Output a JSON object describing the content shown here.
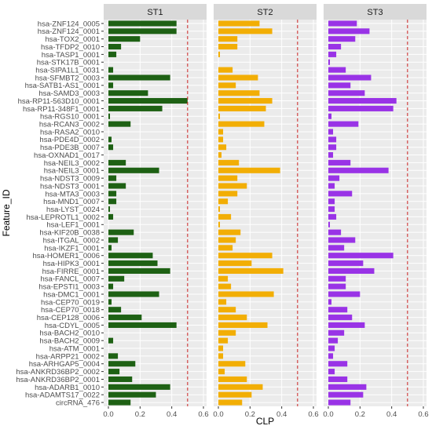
{
  "chart_data": {
    "type": "bar",
    "orientation": "horizontal",
    "facet_by": "subtype",
    "xlabel": "CLP",
    "ylabel": "Feature_ID",
    "xlim": [
      0,
      0.6
    ],
    "x_ticks": [
      0.0,
      0.2,
      0.4,
      0.6
    ],
    "x_tick_labels": [
      "0.0",
      "0.2",
      "0.4",
      "0.6"
    ],
    "reference_line": 0.5,
    "grid": true,
    "categories": [
      "hsa-ZNF124_0005",
      "hsa-ZNF124_0001",
      "hsa-TOX2_0001",
      "hsa-TFDP2_0010",
      "hsa-TASP1_0001",
      "hsa-STK17B_0001",
      "hsa-SIPA1L1_0031",
      "hsa-SFMBT2_0003",
      "hsa-SATB1-AS1_0001",
      "hsa-SAMD3_0003",
      "hsa-RP11-563D10_0001",
      "hsa-RP11-348F1_0001",
      "hsa-RGS10_0001",
      "hsa-RCAN3_0002",
      "hsa-RASA2_0010",
      "hsa-PDE4D_0002",
      "hsa-PDE3B_0007",
      "hsa-OXNAD1_0017",
      "hsa-NEIL3_0002",
      "hsa-NEIL3_0001",
      "hsa-NDST3_0009",
      "hsa-NDST3_0001",
      "hsa-MTA3_0003",
      "hsa-MND1_0007",
      "hsa-LYST_0024",
      "hsa-LEPROTL1_0002",
      "hsa-LEF1_0001",
      "hsa-KIF20B_0038",
      "hsa-ITGAL_0002",
      "hsa-IKZF1_0001",
      "hsa-HOMER1_0006",
      "hsa-HIPK3_0001",
      "hsa-FIRRE_0001",
      "hsa-FANCL_0007",
      "hsa-EPSTI1_0003",
      "hsa-DMC1_0001",
      "hsa-CEP70_0019",
      "hsa-CEP70_0018",
      "hsa-CEP128_0006",
      "hsa-CDYL_0005",
      "hsa-BACH2_0010",
      "hsa-BACH2_0009",
      "hsa-ATM_0001",
      "hsa-ARPP21_0002",
      "hsa-ARHGAP5_0004",
      "hsa-ANKRD36BP2_0002",
      "hsa-ANKRD36BP2_0001",
      "hsa-ADARB1_0010",
      "hsa-ADAMTS17_0022",
      "circRNA_476"
    ],
    "series": [
      {
        "name": "ST1",
        "color": "#1e6114",
        "values": [
          0.43,
          0.43,
          0.2,
          0.08,
          0.05,
          0.0,
          0.03,
          0.39,
          0.03,
          0.25,
          0.5,
          0.34,
          0.01,
          0.14,
          0.0,
          0.02,
          0.03,
          0.0,
          0.11,
          0.32,
          0.05,
          0.11,
          0.05,
          0.05,
          0.01,
          0.03,
          0.0,
          0.16,
          0.06,
          0.02,
          0.28,
          0.31,
          0.39,
          0.1,
          0.03,
          0.32,
          0.02,
          0.08,
          0.21,
          0.43,
          0.0,
          0.03,
          0.0,
          0.06,
          0.17,
          0.07,
          0.15,
          0.39,
          0.3,
          0.14
        ]
      },
      {
        "name": "ST2",
        "color": "#f2ae05",
        "values": [
          0.26,
          0.34,
          0.12,
          0.12,
          0.01,
          0.0,
          0.09,
          0.25,
          0.11,
          0.26,
          0.34,
          0.3,
          0.01,
          0.29,
          0.03,
          0.03,
          0.05,
          0.02,
          0.13,
          0.39,
          0.12,
          0.18,
          0.12,
          0.06,
          0.01,
          0.08,
          0.01,
          0.14,
          0.11,
          0.09,
          0.34,
          0.21,
          0.41,
          0.06,
          0.08,
          0.35,
          0.05,
          0.11,
          0.18,
          0.31,
          0.11,
          0.06,
          0.03,
          0.03,
          0.17,
          0.04,
          0.18,
          0.28,
          0.21,
          0.15
        ]
      },
      {
        "name": "ST3",
        "color": "#9933e6",
        "values": [
          0.18,
          0.26,
          0.17,
          0.08,
          0.05,
          0.01,
          0.11,
          0.27,
          0.14,
          0.23,
          0.43,
          0.41,
          0.02,
          0.19,
          0.03,
          0.05,
          0.05,
          0.03,
          0.14,
          0.38,
          0.07,
          0.04,
          0.15,
          0.04,
          0.04,
          0.05,
          0.01,
          0.08,
          0.17,
          0.1,
          0.41,
          0.22,
          0.29,
          0.11,
          0.11,
          0.2,
          0.02,
          0.12,
          0.15,
          0.23,
          0.1,
          0.06,
          0.04,
          0.03,
          0.12,
          0.04,
          0.12,
          0.24,
          0.22,
          0.14
        ]
      }
    ]
  }
}
